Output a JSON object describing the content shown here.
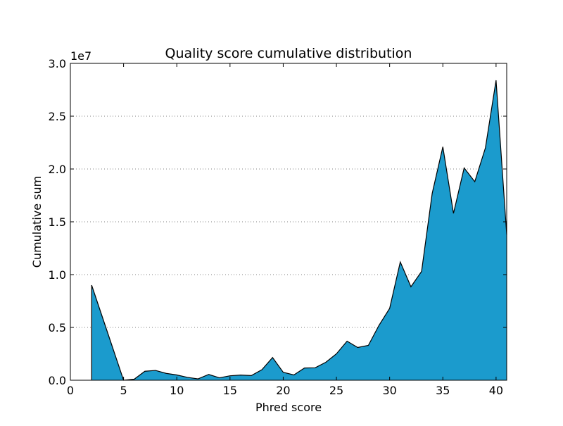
{
  "chart_data": {
    "type": "area",
    "title": "Quality score cumulative distribution",
    "xlabel": "Phred score",
    "ylabel": "Cumulative sum",
    "y_offset_label": "1e7",
    "xlim": [
      0,
      41
    ],
    "ylim": [
      0,
      30000000
    ],
    "x_ticks": [
      0,
      5,
      10,
      15,
      20,
      25,
      30,
      35,
      40
    ],
    "x_tick_labels": [
      "0",
      "5",
      "10",
      "15",
      "20",
      "25",
      "30",
      "35",
      "40"
    ],
    "y_ticks": [
      0,
      5000000,
      10000000,
      15000000,
      20000000,
      25000000,
      30000000
    ],
    "y_tick_labels": [
      "0.0",
      "0.5",
      "1.0",
      "1.5",
      "2.0",
      "2.5",
      "3.0"
    ],
    "grid": "horizontal dotted",
    "fill_color": "#1b9bcd",
    "line_color": "#000000",
    "series": [
      {
        "x": [
          2,
          3,
          4,
          5,
          6,
          7,
          8,
          9,
          10,
          11,
          12,
          13,
          14,
          15,
          16,
          17,
          18,
          19,
          20,
          21,
          22,
          23,
          24,
          25,
          26,
          27,
          28,
          29,
          30,
          31,
          32,
          33,
          34,
          35,
          36,
          37,
          38,
          39,
          40,
          41
        ],
        "values": [
          9000000,
          6000000,
          3000000,
          0,
          100000,
          850000,
          930000,
          650000,
          500000,
          270000,
          130000,
          550000,
          230000,
          420000,
          490000,
          440000,
          1000000,
          2150000,
          750000,
          500000,
          1160000,
          1180000,
          1700000,
          2500000,
          3700000,
          3100000,
          3300000,
          5200000,
          6800000,
          11200000,
          8850000,
          10300000,
          17700000,
          22100000,
          15800000,
          20100000,
          18800000,
          22000000,
          28400000,
          13800000
        ]
      }
    ]
  }
}
